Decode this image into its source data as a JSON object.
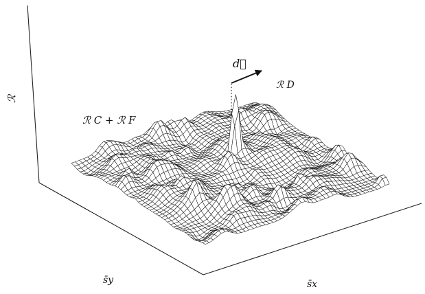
{
  "labels": {
    "vertical_axis": "ℛ",
    "background_label": "ℛ C + ℛ F",
    "peak_label": "ℛ D",
    "vector_label": "d⃗",
    "axis_sy": "s̄y",
    "axis_sx": "s̄x"
  },
  "colors": {
    "ink": "#111111",
    "mesh_fill": "#ffffff",
    "background": "#ffffff"
  },
  "icons": {
    "vector_arrow": "arrow-right-icon"
  }
}
